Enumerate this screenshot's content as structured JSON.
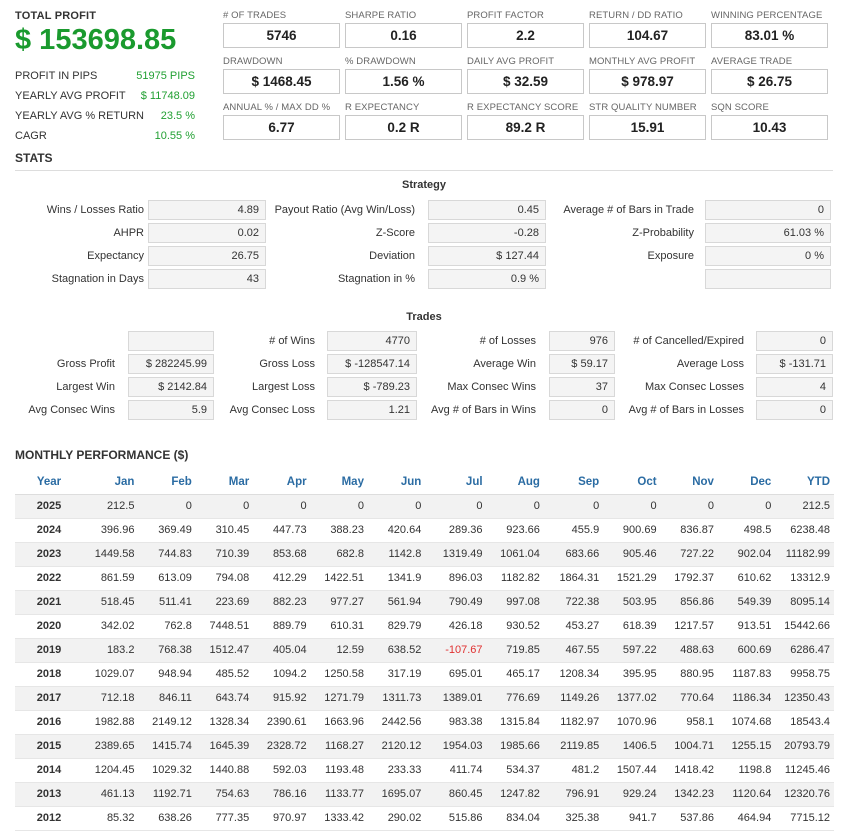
{
  "summary": {
    "total_label": "TOTAL PROFIT",
    "total_value": "$ 153698.85",
    "items": [
      {
        "label": "PROFIT IN PIPS",
        "value": "51975 PIPS"
      },
      {
        "label": "YEARLY AVG PROFIT",
        "value": "$ 11748.09"
      },
      {
        "label": "YEARLY AVG % RETURN",
        "value": "23.5 %"
      },
      {
        "label": "CAGR",
        "value": "10.55 %"
      }
    ]
  },
  "metrics": [
    [
      {
        "label": "# OF TRADES",
        "value": "5746"
      },
      {
        "label": "SHARPE RATIO",
        "value": "0.16"
      },
      {
        "label": "PROFIT FACTOR",
        "value": "2.2"
      },
      {
        "label": "RETURN / DD RATIO",
        "value": "104.67"
      },
      {
        "label": "WINNING PERCENTAGE",
        "value": "83.01 %"
      }
    ],
    [
      {
        "label": "DRAWDOWN",
        "value": "$ 1468.45"
      },
      {
        "label": "% DRAWDOWN",
        "value": "1.56 %"
      },
      {
        "label": "DAILY AVG PROFIT",
        "value": "$ 32.59"
      },
      {
        "label": "MONTHLY AVG PROFIT",
        "value": "$ 978.97"
      },
      {
        "label": "AVERAGE TRADE",
        "value": "$ 26.75"
      }
    ],
    [
      {
        "label": "ANNUAL % / MAX DD %",
        "value": "6.77"
      },
      {
        "label": "R EXPECTANCY",
        "value": "0.2 R"
      },
      {
        "label": "R EXPECTANCY SCORE",
        "value": "89.2 R"
      },
      {
        "label": "STR QUALITY NUMBER",
        "value": "15.91"
      },
      {
        "label": "SQN SCORE",
        "value": "10.43"
      }
    ]
  ],
  "stats": {
    "title": "STATS",
    "strategy_title": "Strategy",
    "strategy": [
      [
        {
          "label": "Wins / Losses Ratio",
          "value": "4.89"
        },
        {
          "label": "Payout Ratio (Avg Win/Loss)",
          "value": "0.45"
        },
        {
          "label": "Average # of Bars in Trade",
          "value": "0"
        }
      ],
      [
        {
          "label": "AHPR",
          "value": "0.02"
        },
        {
          "label": "Z-Score",
          "value": "-0.28"
        },
        {
          "label": "Z-Probability",
          "value": "61.03 %"
        }
      ],
      [
        {
          "label": "Expectancy",
          "value": "26.75"
        },
        {
          "label": "Deviation",
          "value": "$ 127.44"
        },
        {
          "label": "Exposure",
          "value": "0 %"
        }
      ],
      [
        {
          "label": "Stagnation in Days",
          "value": "43"
        },
        {
          "label": "Stagnation in %",
          "value": "0.9 %"
        },
        {
          "label": "",
          "value": ""
        }
      ]
    ],
    "trades_title": "Trades",
    "trades": [
      [
        {
          "label": "",
          "value": ""
        },
        {
          "label": "# of Wins",
          "value": "4770"
        },
        {
          "label": "# of Losses",
          "value": "976"
        },
        {
          "label": "# of Cancelled/Expired",
          "value": "0"
        }
      ],
      [
        {
          "label": "Gross Profit",
          "value": "$ 282245.99"
        },
        {
          "label": "Gross Loss",
          "value": "$ -128547.14"
        },
        {
          "label": "Average Win",
          "value": "$ 59.17"
        },
        {
          "label": "Average Loss",
          "value": "$ -131.71"
        }
      ],
      [
        {
          "label": "Largest Win",
          "value": "$ 2142.84"
        },
        {
          "label": "Largest Loss",
          "value": "$ -789.23"
        },
        {
          "label": "Max Consec Wins",
          "value": "37"
        },
        {
          "label": "Max Consec Losses",
          "value": "4"
        }
      ],
      [
        {
          "label": "Avg Consec Wins",
          "value": "5.9"
        },
        {
          "label": "Avg Consec Loss",
          "value": "1.21"
        },
        {
          "label": "Avg # of Bars in Wins",
          "value": "0"
        },
        {
          "label": "Avg # of Bars in Losses",
          "value": "0"
        }
      ]
    ]
  },
  "monthly": {
    "title": "MONTHLY PERFORMANCE ($)",
    "headers": [
      "Year",
      "Jan",
      "Feb",
      "Mar",
      "Apr",
      "May",
      "Jun",
      "Jul",
      "Aug",
      "Sep",
      "Oct",
      "Nov",
      "Dec",
      "YTD"
    ],
    "rows": [
      [
        "2025",
        "212.5",
        "0",
        "0",
        "0",
        "0",
        "0",
        "0",
        "0",
        "0",
        "0",
        "0",
        "0",
        "212.5"
      ],
      [
        "2024",
        "396.96",
        "369.49",
        "310.45",
        "447.73",
        "388.23",
        "420.64",
        "289.36",
        "923.66",
        "455.9",
        "900.69",
        "836.87",
        "498.5",
        "6238.48"
      ],
      [
        "2023",
        "1449.58",
        "744.83",
        "710.39",
        "853.68",
        "682.8",
        "1142.8",
        "1319.49",
        "1061.04",
        "683.66",
        "905.46",
        "727.22",
        "902.04",
        "11182.99"
      ],
      [
        "2022",
        "861.59",
        "613.09",
        "794.08",
        "412.29",
        "1422.51",
        "1341.9",
        "896.03",
        "1182.82",
        "1864.31",
        "1521.29",
        "1792.37",
        "610.62",
        "13312.9"
      ],
      [
        "2021",
        "518.45",
        "511.41",
        "223.69",
        "882.23",
        "977.27",
        "561.94",
        "790.49",
        "997.08",
        "722.38",
        "503.95",
        "856.86",
        "549.39",
        "8095.14"
      ],
      [
        "2020",
        "342.02",
        "762.8",
        "7448.51",
        "889.79",
        "610.31",
        "829.79",
        "426.18",
        "930.52",
        "453.27",
        "618.39",
        "1217.57",
        "913.51",
        "15442.66"
      ],
      [
        "2019",
        "183.2",
        "768.38",
        "1512.47",
        "405.04",
        "12.59",
        "638.52",
        "-107.67",
        "719.85",
        "467.55",
        "597.22",
        "488.63",
        "600.69",
        "6286.47"
      ],
      [
        "2018",
        "1029.07",
        "948.94",
        "485.52",
        "1094.2",
        "1250.58",
        "317.19",
        "695.01",
        "465.17",
        "1208.34",
        "395.95",
        "880.95",
        "1187.83",
        "9958.75"
      ],
      [
        "2017",
        "712.18",
        "846.11",
        "643.74",
        "915.92",
        "1271.79",
        "1311.73",
        "1389.01",
        "776.69",
        "1149.26",
        "1377.02",
        "770.64",
        "1186.34",
        "12350.43"
      ],
      [
        "2016",
        "1982.88",
        "2149.12",
        "1328.34",
        "2390.61",
        "1663.96",
        "2442.56",
        "983.38",
        "1315.84",
        "1182.97",
        "1070.96",
        "958.1",
        "1074.68",
        "18543.4"
      ],
      [
        "2015",
        "2389.65",
        "1415.74",
        "1645.39",
        "2328.72",
        "1168.27",
        "2120.12",
        "1954.03",
        "1985.66",
        "2119.85",
        "1406.5",
        "1004.71",
        "1255.15",
        "20793.79"
      ],
      [
        "2014",
        "1204.45",
        "1029.32",
        "1440.88",
        "592.03",
        "1193.48",
        "233.33",
        "411.74",
        "534.37",
        "481.2",
        "1507.44",
        "1418.42",
        "1198.8",
        "11245.46"
      ],
      [
        "2013",
        "461.13",
        "1192.71",
        "754.63",
        "786.16",
        "1133.77",
        "1695.07",
        "860.45",
        "1247.82",
        "796.91",
        "929.24",
        "1342.23",
        "1120.64",
        "12320.76"
      ],
      [
        "2012",
        "85.32",
        "638.26",
        "777.35",
        "970.97",
        "1333.42",
        "290.02",
        "515.86",
        "834.04",
        "325.38",
        "941.7",
        "537.86",
        "464.94",
        "7715.12"
      ]
    ]
  },
  "colors": {
    "profit_green": "#1a9a2e",
    "header_blue": "#2b6ca3",
    "negative_red": "#e03030"
  }
}
